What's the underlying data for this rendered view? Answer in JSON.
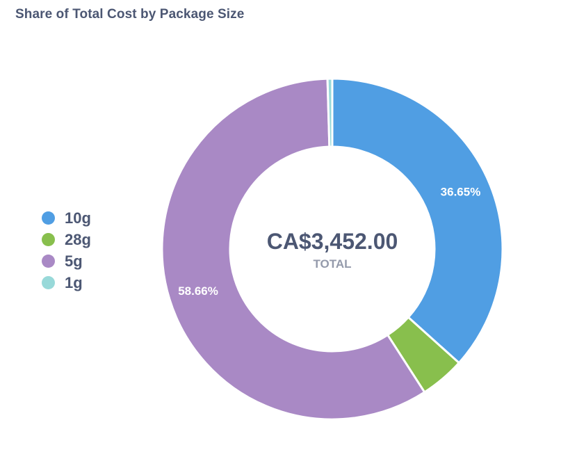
{
  "header": {
    "title": "Share of Total Cost by Package Size"
  },
  "center": {
    "value": "CA$3,452.00",
    "label": "TOTAL"
  },
  "chart_data": {
    "type": "pie",
    "title": "Share of Total Cost by Package Size",
    "donut": true,
    "legend_position": "left",
    "total": 3452.0,
    "series": [
      {
        "name": "10g",
        "percent": 36.65,
        "color": "#509ee3",
        "value_label": "36.65%"
      },
      {
        "name": "28g",
        "percent": 4.24,
        "color": "#88bf4d",
        "value_label": ""
      },
      {
        "name": "5g",
        "percent": 58.66,
        "color": "#a989c5",
        "value_label": "58.66%"
      },
      {
        "name": "1g",
        "percent": 0.45,
        "color": "#98d9d9",
        "value_label": ""
      }
    ]
  }
}
